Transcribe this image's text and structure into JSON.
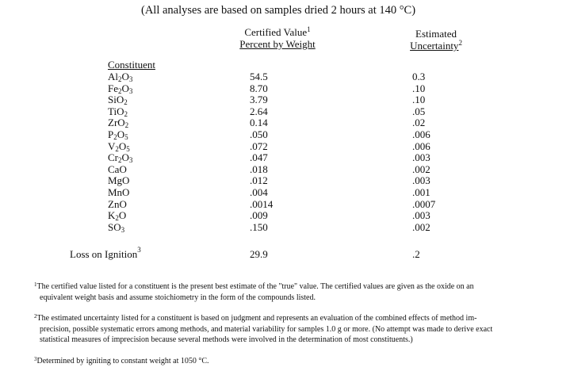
{
  "header_note": "(All analyses are based on samples dried 2 hours at 140 °C)",
  "columns": {
    "constituent": "Constituent",
    "certified_line1": "Certified Value",
    "certified_sup": "1",
    "certified_line2": "Percent by Weight",
    "uncertainty_line1": "Estimated",
    "uncertainty_line2": "Uncertainty",
    "uncertainty_sup": "2"
  },
  "rows": [
    {
      "formula": [
        "Al",
        "2",
        "O",
        "3"
      ],
      "value": "54.5",
      "uncertainty": "0.3"
    },
    {
      "formula": [
        "Fe",
        "2",
        "O",
        "3"
      ],
      "value": "8.70",
      "uncertainty": ".10"
    },
    {
      "formula": [
        "SiO",
        "2"
      ],
      "value": "3.79",
      "uncertainty": ".10"
    },
    {
      "formula": [
        "TiO",
        "2"
      ],
      "value": "2.64",
      "uncertainty": ".05"
    },
    {
      "formula": [
        "ZrO",
        "2"
      ],
      "value": "0.14",
      "uncertainty": ".02"
    },
    {
      "formula": [
        "P",
        "2",
        "O",
        "5"
      ],
      "value": ".050",
      "uncertainty": ".006"
    },
    {
      "formula": [
        "V",
        "2",
        "O",
        "5"
      ],
      "value": ".072",
      "uncertainty": ".006"
    },
    {
      "formula": [
        "Cr",
        "2",
        "O",
        "3"
      ],
      "value": ".047",
      "uncertainty": ".003"
    },
    {
      "formula": [
        "CaO"
      ],
      "value": ".018",
      "uncertainty": ".002"
    },
    {
      "formula": [
        "MgO"
      ],
      "value": ".012",
      "uncertainty": ".003"
    },
    {
      "formula": [
        "MnO"
      ],
      "value": ".004",
      "uncertainty": ".001"
    },
    {
      "formula": [
        "ZnO"
      ],
      "value": ".0014",
      "uncertainty": ".0007"
    },
    {
      "formula": [
        "K",
        "2",
        "O"
      ],
      "value": ".009",
      "uncertainty": ".003"
    },
    {
      "formula": [
        "SO",
        "3"
      ],
      "value": ".150",
      "uncertainty": ".002"
    }
  ],
  "loss": {
    "label": "Loss on Ignition",
    "sup": "3",
    "value": "29.9",
    "uncertainty": ".2"
  },
  "footnotes": [
    {
      "mark": "1",
      "line1": "The certified value listed for a constituent is the present best estimate of the \"true\" value. The certified values are given as the oxide on an",
      "line2": "equivalent weight basis and assume stoichiometry in the form of the compounds listed.",
      "line3": ""
    },
    {
      "mark": "2",
      "line1": "The estimated uncertainty listed for a constituent is based on judgment and represents an evaluation of the combined  effects of method im-",
      "line2": "precision, possible systematic errors among methods, and material variability for samples 1.0 g or more.  (No attempt was made to derive exact",
      "line3": "statistical measures of imprecision because several methods were involved in the determination of most constituents.)"
    },
    {
      "mark": "3",
      "line1": "Determined by igniting to constant weight at 1050 °C.",
      "line2": "",
      "line3": ""
    }
  ]
}
